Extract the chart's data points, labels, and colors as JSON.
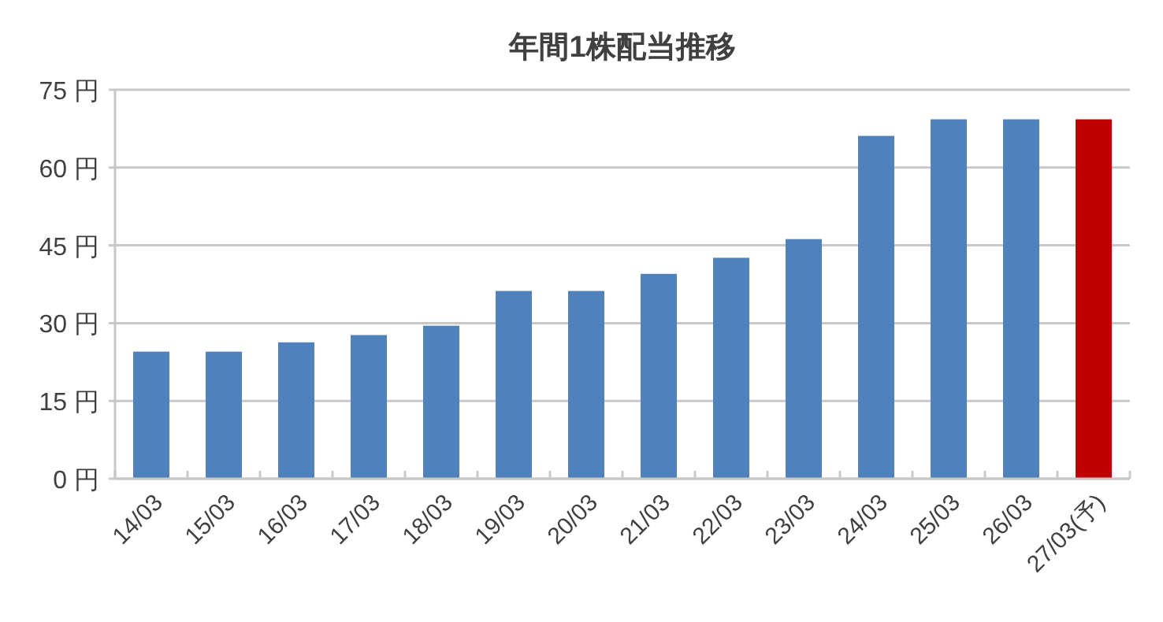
{
  "chart_data": {
    "type": "bar",
    "title": "年間1株配当推移",
    "categories": [
      "14/03",
      "15/03",
      "16/03",
      "17/03",
      "18/03",
      "19/03",
      "20/03",
      "21/03",
      "22/03",
      "23/03",
      "24/03",
      "25/03",
      "26/03",
      "27/03(予)"
    ],
    "values": [
      24.5,
      24.5,
      26.3,
      27.7,
      29.5,
      36.2,
      36.2,
      39.5,
      42.6,
      46.2,
      66.1,
      69.3,
      69.3,
      69.3
    ],
    "colors": [
      "#4f81bd",
      "#4f81bd",
      "#4f81bd",
      "#4f81bd",
      "#4f81bd",
      "#4f81bd",
      "#4f81bd",
      "#4f81bd",
      "#4f81bd",
      "#4f81bd",
      "#4f81bd",
      "#4f81bd",
      "#4f81bd",
      "#c00000"
    ],
    "ylim": [
      0,
      75
    ],
    "yticks": [
      {
        "value": 0,
        "label": "0 円"
      },
      {
        "value": 15,
        "label": "15 円"
      },
      {
        "value": 30,
        "label": "30 円"
      },
      {
        "value": 45,
        "label": "45 円"
      },
      {
        "value": 60,
        "label": "60 円"
      },
      {
        "value": 75,
        "label": "75 円"
      }
    ],
    "grid": "y"
  }
}
